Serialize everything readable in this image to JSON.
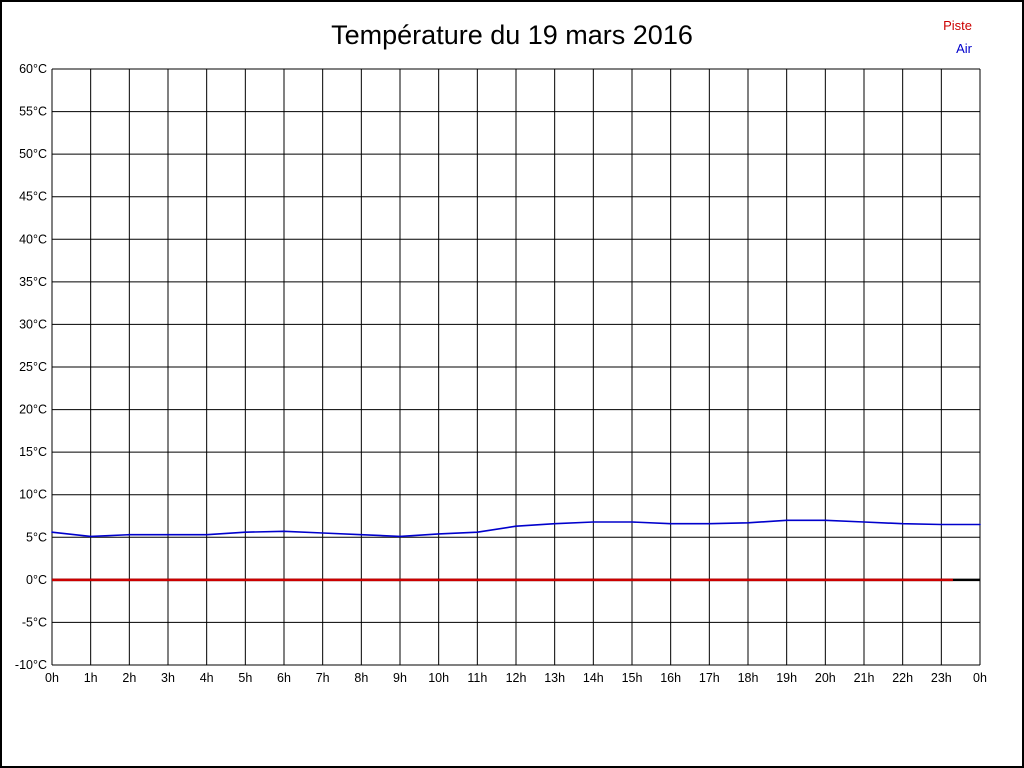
{
  "chart_data": {
    "type": "line",
    "title": "Température du 19 mars 2016",
    "xlabel": "",
    "ylabel": "",
    "ylim": [
      -10,
      60
    ],
    "y_tick_step": 5,
    "y_tick_labels": [
      "60°C",
      "55°C",
      "50°C",
      "45°C",
      "40°C",
      "35°C",
      "30°C",
      "25°C",
      "20°C",
      "15°C",
      "10°C",
      "5°C",
      "0°C",
      "-5°C",
      "-10°C"
    ],
    "x_tick_labels": [
      "0h",
      "1h",
      "2h",
      "3h",
      "4h",
      "5h",
      "6h",
      "7h",
      "8h",
      "9h",
      "10h",
      "11h",
      "12h",
      "13h",
      "14h",
      "15h",
      "16h",
      "17h",
      "18h",
      "19h",
      "20h",
      "21h",
      "22h",
      "23h",
      "0h"
    ],
    "grid": true,
    "legend_position": "top-right",
    "series": [
      {
        "name": "Piste",
        "color": "#cc0000",
        "values": [
          0,
          0,
          0,
          0,
          0,
          0,
          0,
          0,
          0,
          0,
          0,
          0,
          0,
          0,
          0,
          0,
          0,
          0,
          0,
          0,
          0,
          0,
          0,
          0
        ]
      },
      {
        "name": "Air",
        "color": "#0000cc",
        "values": [
          5.6,
          5.1,
          5.3,
          5.3,
          5.3,
          5.6,
          5.7,
          5.5,
          5.3,
          5.1,
          5.4,
          5.6,
          6.3,
          6.6,
          6.8,
          6.8,
          6.6,
          6.6,
          6.7,
          7.0,
          7.0,
          6.8,
          6.6,
          6.5,
          6.5
        ]
      }
    ]
  }
}
